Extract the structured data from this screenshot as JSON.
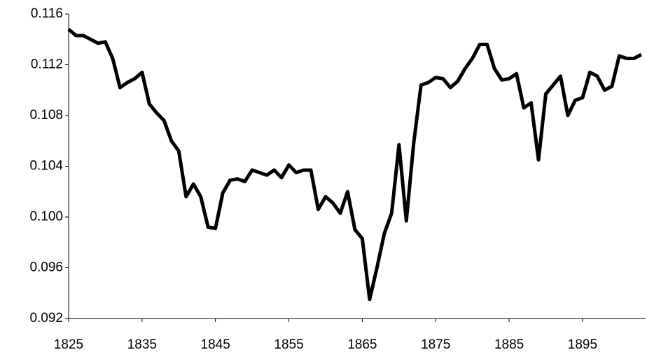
{
  "chart_data": {
    "type": "line",
    "x": [
      1825,
      1826,
      1827,
      1828,
      1829,
      1830,
      1831,
      1832,
      1833,
      1834,
      1835,
      1836,
      1837,
      1838,
      1839,
      1840,
      1841,
      1842,
      1843,
      1844,
      1845,
      1846,
      1847,
      1848,
      1849,
      1850,
      1851,
      1852,
      1853,
      1854,
      1855,
      1856,
      1857,
      1858,
      1859,
      1860,
      1861,
      1862,
      1863,
      1864,
      1865,
      1866,
      1867,
      1868,
      1869,
      1870,
      1871,
      1872,
      1873,
      1874,
      1875,
      1876,
      1877,
      1878,
      1879,
      1880,
      1881,
      1882,
      1883,
      1884,
      1885,
      1886,
      1887,
      1888,
      1889,
      1890,
      1891,
      1892,
      1893,
      1894,
      1895,
      1896,
      1897,
      1898,
      1899,
      1900,
      1901,
      1902,
      1903
    ],
    "series": [
      {
        "color": "#000000",
        "values": [
          0.1148,
          0.1143,
          0.1143,
          0.114,
          0.1137,
          0.1138,
          0.1125,
          0.1102,
          0.1106,
          0.1109,
          0.1114,
          0.1089,
          0.1082,
          0.1076,
          0.106,
          0.1052,
          0.1016,
          0.1026,
          0.1016,
          0.0992,
          0.0991,
          0.1019,
          0.1029,
          0.103,
          0.1028,
          0.1037,
          0.1035,
          0.1033,
          0.1037,
          0.1031,
          0.1041,
          0.1035,
          0.1037,
          0.1037,
          0.1006,
          0.1016,
          0.1011,
          0.1003,
          0.102,
          0.099,
          0.0983,
          0.0935,
          0.096,
          0.0987,
          0.1003,
          0.1057,
          0.0997,
          0.1058,
          0.1104,
          0.1106,
          0.111,
          0.1109,
          0.1102,
          0.1107,
          0.1117,
          0.1125,
          0.1136,
          0.1136,
          0.1117,
          0.1108,
          0.1109,
          0.1113,
          0.1086,
          0.109,
          0.1045,
          0.1097,
          0.1104,
          0.1111,
          0.108,
          0.1092,
          0.1094,
          0.1114,
          0.1111,
          0.11,
          0.1103,
          0.1127,
          0.1125,
          0.1125,
          0.1128
        ]
      }
    ],
    "xlim": [
      1825,
      1903.4
    ],
    "xticks": [
      1825,
      1835,
      1845,
      1855,
      1865,
      1875,
      1885,
      1895
    ],
    "ylim": [
      0.092,
      0.116
    ],
    "yticks": [
      0.092,
      0.096,
      {
        "value": 0.1,
        "label": "0.100"
      },
      0.104,
      0.108,
      0.112,
      0.116
    ],
    "grid": false
  }
}
